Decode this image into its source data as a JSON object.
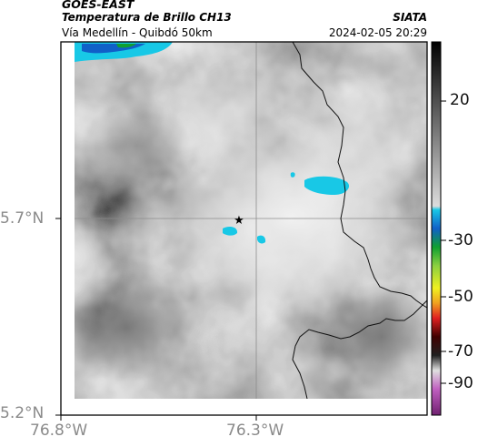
{
  "header": {
    "satellite": "GOES-EAST",
    "product": "Temperatura de Brillo CH13",
    "region": "Vía Medellín - Quibdó 50km",
    "brand": "SIATA",
    "timestamp": "2024-02-05 20:29"
  },
  "map": {
    "lat_labels": [
      "5.7°N",
      "5.2°N"
    ],
    "lon_labels": [
      "76.8°W",
      "76.3°W"
    ],
    "marker": "star-icon",
    "grid_color": "#8c8c8c"
  },
  "colorbar": {
    "labels": [
      "20",
      "-30",
      "-50",
      "-70",
      "-90"
    ]
  },
  "colors": {
    "cloud_cold": "#18c8e6",
    "frame": "#000000"
  }
}
